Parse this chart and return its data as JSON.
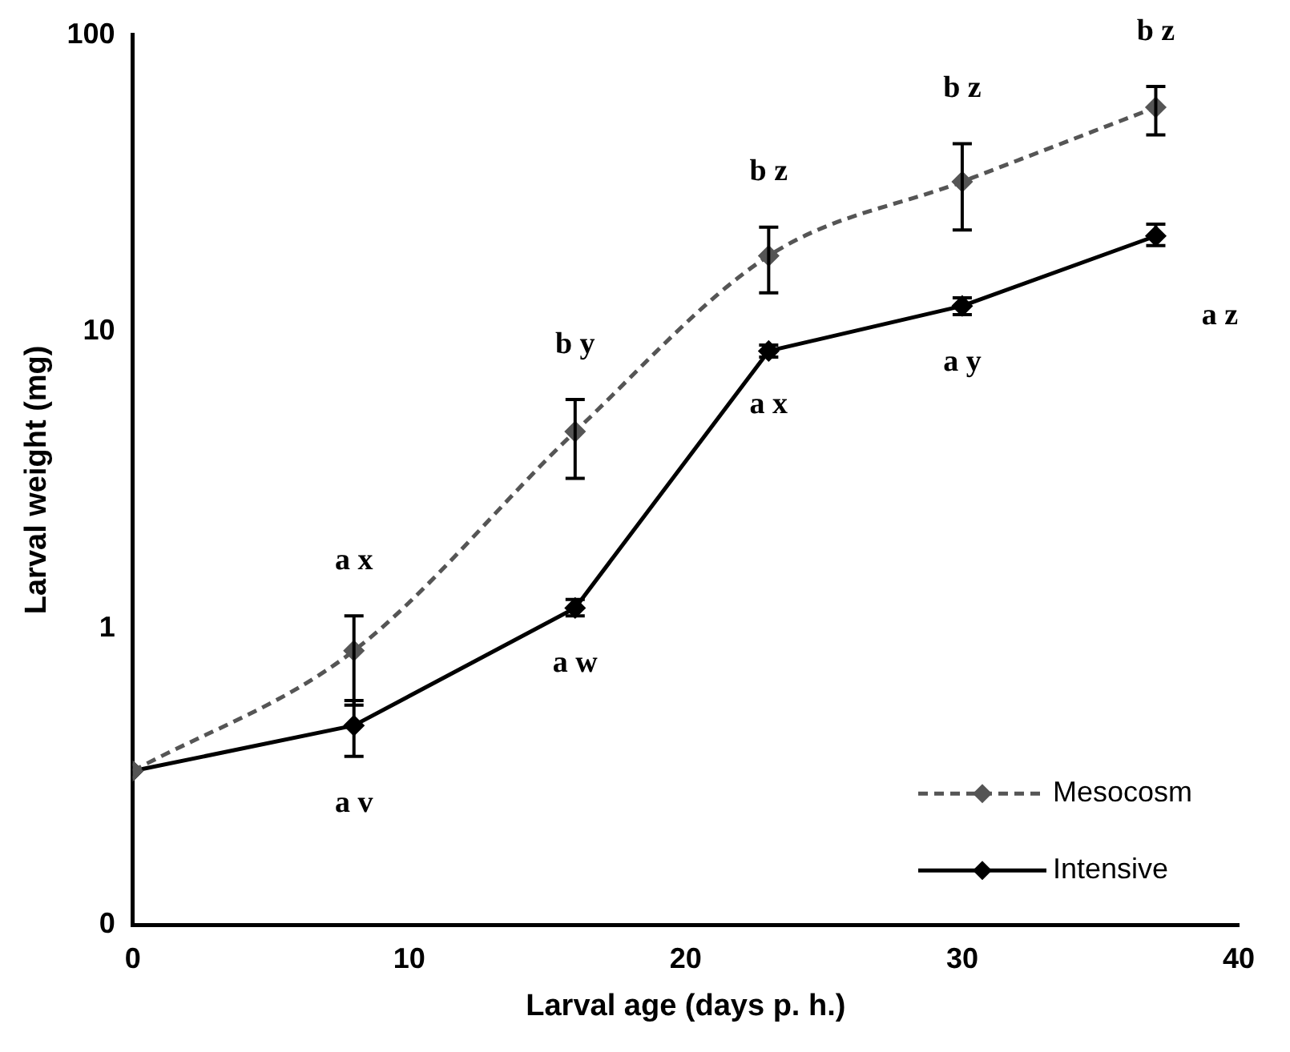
{
  "chart_data": {
    "type": "line",
    "xlabel": "Larval age (days p. h.)",
    "ylabel": "Larval weight (mg)",
    "log": "y",
    "xlim": [
      0,
      40
    ],
    "xticks": [
      0,
      10,
      20,
      30,
      40
    ],
    "ylim": [
      0.1,
      100
    ],
    "yticks": [
      {
        "value": 0.1,
        "label": "0"
      },
      1,
      10,
      100
    ],
    "grid": false,
    "legend": "bottom right",
    "marker": "diamond",
    "series": [
      {
        "name": "Mesocosm",
        "color": "#555555",
        "line_style": "dashed",
        "x": [
          0,
          8,
          16,
          23,
          30,
          37
        ],
        "values": [
          0.33,
          0.84,
          4.6,
          18,
          32,
          57
        ],
        "errors": [
          null,
          [
            0.55,
            1.1
          ],
          [
            3.2,
            5.9
          ],
          [
            13.5,
            22.5
          ],
          [
            22,
            43
          ],
          [
            46,
            67
          ]
        ]
      },
      {
        "name": "Intensive",
        "color": "#000000",
        "line_style": "solid",
        "x": [
          0,
          8,
          16,
          23,
          30,
          37
        ],
        "values": [
          0.33,
          0.47,
          1.17,
          8.6,
          12.2,
          21
        ],
        "errors": [
          null,
          [
            0.37,
            0.57
          ],
          [
            1.1,
            1.25
          ],
          [
            8.2,
            9
          ],
          [
            11.4,
            13
          ],
          [
            19.5,
            23
          ]
        ]
      }
    ],
    "annotations": [
      {
        "text": "a x",
        "x": 8,
        "y": 0.84
      },
      {
        "text": "b y",
        "x": 16,
        "y": 4.6
      },
      {
        "text": "b z",
        "x": 23,
        "y": 18
      },
      {
        "text": "b z",
        "x": 30,
        "y": 32
      },
      {
        "text": "b z",
        "x": 37,
        "y": 57
      },
      {
        "text": "a z",
        "x": 37,
        "y": 21
      },
      {
        "text": "a y",
        "x": 30,
        "y": 12.2
      },
      {
        "text": "a x",
        "x": 23,
        "y": 8.6
      },
      {
        "text": "a w",
        "x": 16,
        "y": 1.17
      },
      {
        "text": "a v",
        "x": 8,
        "y": 0.47
      }
    ]
  }
}
